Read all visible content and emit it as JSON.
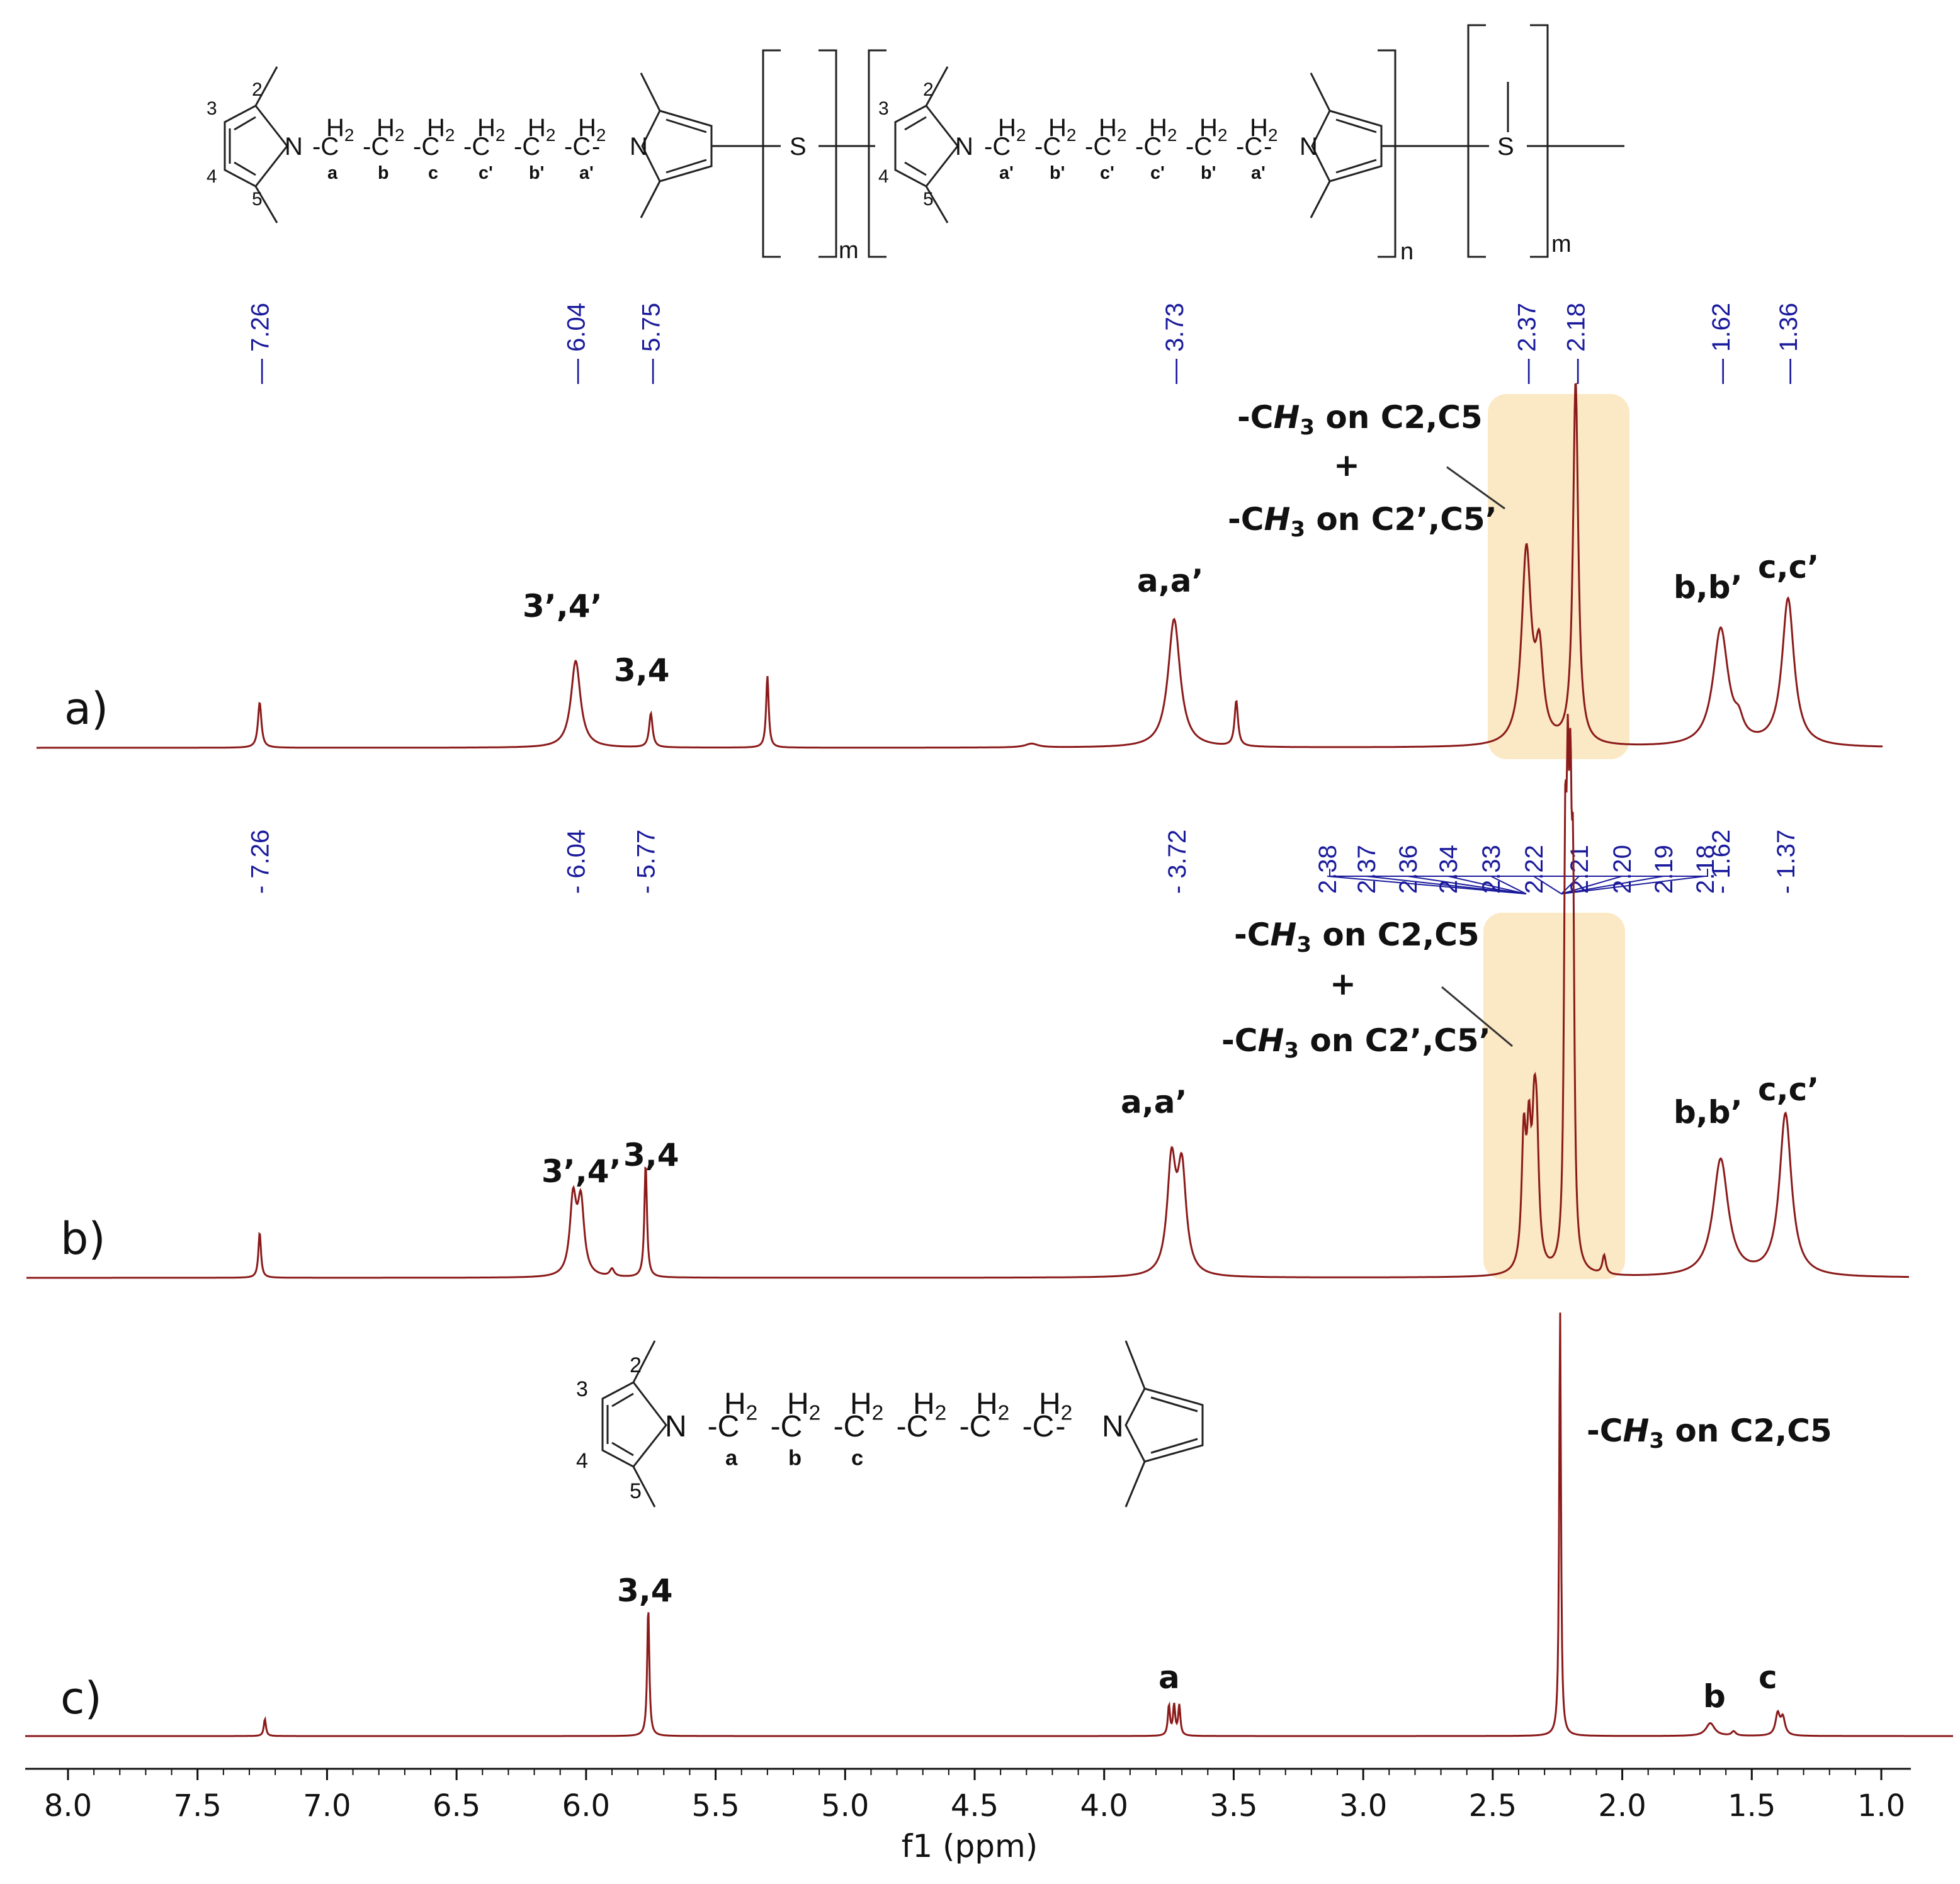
{
  "chart_data": {
    "type": "line",
    "xlabel": "f1 (ppm)",
    "x_reversed": true,
    "xlim": [
      8.15,
      0.85
    ],
    "x_ticks": [
      "8.0",
      "7.5",
      "7.0",
      "6.5",
      "6.0",
      "5.5",
      "5.0",
      "4.5",
      "4.0",
      "3.5",
      "3.0",
      "2.5",
      "2.0",
      "1.5",
      "1.0"
    ],
    "x_tick_values": [
      8.0,
      7.5,
      7.0,
      6.5,
      6.0,
      5.5,
      5.0,
      4.5,
      4.0,
      3.5,
      3.0,
      2.5,
      2.0,
      1.5,
      1.0
    ],
    "line_color": "#8b1a1a",
    "highlight_color": "#fbe8c4",
    "spectra": [
      {
        "panel": "a)",
        "peaks": [
          {
            "ppm": 7.26,
            "height": 0.12,
            "width": 0.008
          },
          {
            "ppm": 6.04,
            "height": 0.23,
            "width": 0.022
          },
          {
            "ppm": 5.75,
            "height": 0.09,
            "width": 0.008
          },
          {
            "ppm": 5.3,
            "height": 0.19,
            "width": 0.006
          },
          {
            "ppm": 4.28,
            "height": 0.01,
            "width": 0.03
          },
          {
            "ppm": 3.73,
            "height": 0.34,
            "width": 0.028
          },
          {
            "ppm": 3.49,
            "height": 0.12,
            "width": 0.008
          },
          {
            "ppm": 2.37,
            "height": 0.51,
            "width": 0.022
          },
          {
            "ppm": 2.32,
            "height": 0.22,
            "width": 0.018
          },
          {
            "ppm": 2.18,
            "height": 0.96,
            "width": 0.012
          },
          {
            "ppm": 1.62,
            "height": 0.31,
            "width": 0.035
          },
          {
            "ppm": 1.55,
            "height": 0.04,
            "width": 0.02
          },
          {
            "ppm": 1.36,
            "height": 0.39,
            "width": 0.028
          }
        ],
        "peak_labels": [
          "7.26",
          "6.04",
          "5.75",
          "3.73",
          "2.37",
          "2.18",
          "1.62",
          "1.36"
        ],
        "peak_label_values": [
          7.26,
          6.04,
          5.75,
          3.73,
          2.37,
          2.18,
          1.62,
          1.36
        ],
        "annotations": {
          "pyrrole_prime": "3’,4’",
          "pyrrole": "3,4",
          "a": "a,a’",
          "b": "b,b’",
          "c": "c,c’",
          "methyl_line1_pre": "-C",
          "methyl_line1_h": "H",
          "methyl_line1_sub": "3",
          "methyl_line1_post": " on C2,C5",
          "plus": "+",
          "methyl_line2_pre": "-C",
          "methyl_line2_h": "H",
          "methyl_line2_sub": "3",
          "methyl_line2_post": " on C2’,C5’"
        }
      },
      {
        "panel": "b)",
        "peaks": [
          {
            "ppm": 7.26,
            "height": 0.12,
            "width": 0.006
          },
          {
            "ppm": 6.05,
            "height": 0.2,
            "width": 0.015
          },
          {
            "ppm": 6.02,
            "height": 0.19,
            "width": 0.015
          },
          {
            "ppm": 5.9,
            "height": 0.02,
            "width": 0.01
          },
          {
            "ppm": 5.77,
            "height": 0.3,
            "width": 0.006
          },
          {
            "ppm": 3.74,
            "height": 0.29,
            "width": 0.02
          },
          {
            "ppm": 3.7,
            "height": 0.27,
            "width": 0.02
          },
          {
            "ppm": 2.38,
            "height": 0.34,
            "width": 0.01
          },
          {
            "ppm": 2.36,
            "height": 0.31,
            "width": 0.01
          },
          {
            "ppm": 2.34,
            "height": 0.3,
            "width": 0.01
          },
          {
            "ppm": 2.33,
            "height": 0.28,
            "width": 0.01
          },
          {
            "ppm": 2.22,
            "height": 0.95,
            "width": 0.006
          },
          {
            "ppm": 2.21,
            "height": 0.93,
            "width": 0.006
          },
          {
            "ppm": 2.2,
            "height": 0.9,
            "width": 0.006
          },
          {
            "ppm": 2.19,
            "height": 0.85,
            "width": 0.006
          },
          {
            "ppm": 2.07,
            "height": 0.05,
            "width": 0.008
          },
          {
            "ppm": 1.62,
            "height": 0.31,
            "width": 0.035
          },
          {
            "ppm": 1.37,
            "height": 0.43,
            "width": 0.028
          }
        ],
        "peak_labels": [
          "7.26",
          "6.04",
          "5.77",
          "3.72",
          "2.38",
          "2.37",
          "2.36",
          "2.34",
          "2.33",
          "2.22",
          "2.21",
          "2.20",
          "2.19",
          "2.18",
          "1.62",
          "1.37"
        ],
        "peak_label_values": [
          7.26,
          6.04,
          5.77,
          3.72,
          2.38,
          2.37,
          2.36,
          2.34,
          2.33,
          2.22,
          2.21,
          2.2,
          2.19,
          2.18,
          1.62,
          1.37
        ],
        "annotations": {
          "pyrrole_prime": "3’,4’",
          "pyrrole": "3,4",
          "a": "a,a’",
          "b": "b,b’",
          "c": "c,c’",
          "methyl_line1_pre": "-C",
          "methyl_line1_h": "H",
          "methyl_line1_sub": "3",
          "methyl_line1_post": " on C2,C5",
          "plus": "+",
          "methyl_line2_pre": "-C",
          "methyl_line2_h": "H",
          "methyl_line2_sub": "3",
          "methyl_line2_post": " on C2’,C5’"
        }
      },
      {
        "panel": "c)",
        "peaks": [
          {
            "ppm": 7.24,
            "height": 0.04,
            "width": 0.005
          },
          {
            "ppm": 5.76,
            "height": 0.3,
            "width": 0.005
          },
          {
            "ppm": 3.75,
            "height": 0.07,
            "width": 0.005
          },
          {
            "ppm": 3.73,
            "height": 0.07,
            "width": 0.005
          },
          {
            "ppm": 3.71,
            "height": 0.07,
            "width": 0.005
          },
          {
            "ppm": 2.24,
            "height": 1.0,
            "width": 0.004
          },
          {
            "ppm": 1.66,
            "height": 0.03,
            "width": 0.02
          },
          {
            "ppm": 1.57,
            "height": 0.01,
            "width": 0.01
          },
          {
            "ppm": 1.4,
            "height": 0.05,
            "width": 0.01
          },
          {
            "ppm": 1.38,
            "height": 0.04,
            "width": 0.01
          }
        ],
        "annotations": {
          "pyrrole": "3,4",
          "a": "a",
          "b": "b",
          "c": "c",
          "methyl_pre": "-C",
          "methyl_h": "H",
          "methyl_sub": "3",
          "methyl_post": " on C2,C5"
        }
      }
    ]
  },
  "structures": {
    "top_ring_numbers": [
      "3",
      "2",
      "4",
      "5"
    ],
    "top_ring_numbers_prime": [
      "3",
      "2",
      "4",
      "5"
    ],
    "ch2": "H",
    "ch2_sub": "2",
    "carbon": "C",
    "dash": "-",
    "nitrogen": "N",
    "sulfur": "S",
    "top_chain_labels": [
      "a",
      "b",
      "c",
      "c'",
      "b'",
      "a'"
    ],
    "top_chain_labels_prime": [
      "a'",
      "b'",
      "c'",
      "c'",
      "b'",
      "a'"
    ],
    "sub_m": "m",
    "sub_n": "n",
    "bottom_ring_numbers": [
      "3",
      "2",
      "4",
      "5"
    ],
    "bottom_chain_labels": [
      "a",
      "b",
      "c"
    ]
  }
}
